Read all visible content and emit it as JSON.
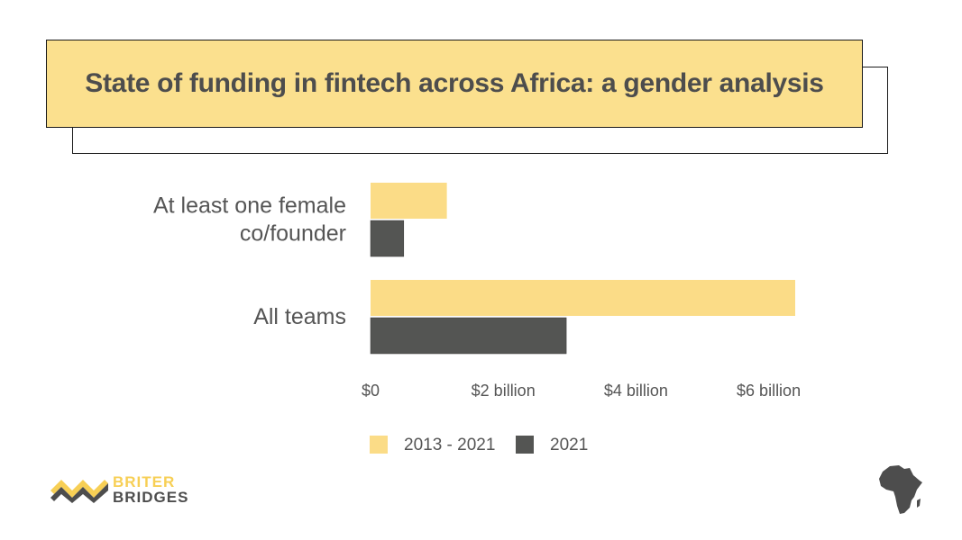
{
  "title": "State of funding in fintech across Africa: a gender analysis",
  "brand": {
    "line1": "BRITER",
    "line2": "BRIDGES",
    "logo_icon": "briter-bridges-logo-icon",
    "map_icon": "africa-map-icon"
  },
  "colors": {
    "series_2013_2021": "#fbdc87",
    "series_2021": "#545553",
    "title_bg": "#fbe08e"
  },
  "chart_data": {
    "type": "bar",
    "orientation": "horizontal",
    "title": "State of funding in fintech across Africa: a gender analysis",
    "categories": [
      {
        "lines": [
          "At least one female",
          "co/founder"
        ]
      },
      {
        "lines": [
          "All teams"
        ]
      }
    ],
    "series": [
      {
        "name": "2013 - 2021",
        "color": "#fbdc87",
        "values": [
          1.15,
          6.4
        ]
      },
      {
        "name": "2021",
        "color": "#545553",
        "values": [
          0.5,
          2.95
        ]
      }
    ],
    "xlim": [
      0,
      6.5
    ],
    "xticks": [
      {
        "value": 0,
        "label": "$0"
      },
      {
        "value": 2,
        "label": "$2 billion"
      },
      {
        "value": 4,
        "label": "$4 billion"
      },
      {
        "value": 6,
        "label": "$6 billion"
      }
    ],
    "unit": "billion USD",
    "grid": false,
    "legend_position": "bottom-center"
  }
}
